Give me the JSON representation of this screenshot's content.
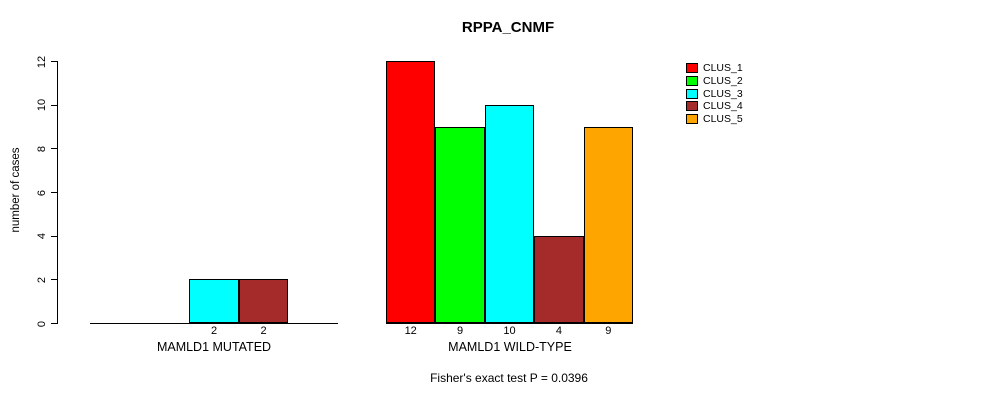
{
  "chart_data": {
    "type": "bar",
    "title": "RPPA_CNMF",
    "ylabel": "number of cases",
    "xlabel": "",
    "ylim": [
      0,
      12
    ],
    "yticks": [
      0,
      2,
      4,
      6,
      8,
      10,
      12
    ],
    "grid": false,
    "legend_position": "right",
    "categories": [
      "MAMLD1 MUTATED",
      "MAMLD1 WILD-TYPE"
    ],
    "series": [
      {
        "name": "CLUS_1",
        "color": "#FF0000",
        "values": [
          0,
          12
        ]
      },
      {
        "name": "CLUS_2",
        "color": "#00FF00",
        "values": [
          0,
          9
        ]
      },
      {
        "name": "CLUS_3",
        "color": "#00FFFF",
        "values": [
          2,
          10
        ]
      },
      {
        "name": "CLUS_4",
        "color": "#A52A2A",
        "values": [
          2,
          4
        ]
      },
      {
        "name": "CLUS_5",
        "color": "#FFA500",
        "values": [
          0,
          9
        ]
      }
    ],
    "bar_labels": [
      [
        "",
        "",
        "2",
        "2",
        ""
      ],
      [
        "12",
        "9",
        "10",
        "4",
        "9"
      ]
    ],
    "footnote": "Fisher's exact test P = 0.0396"
  }
}
